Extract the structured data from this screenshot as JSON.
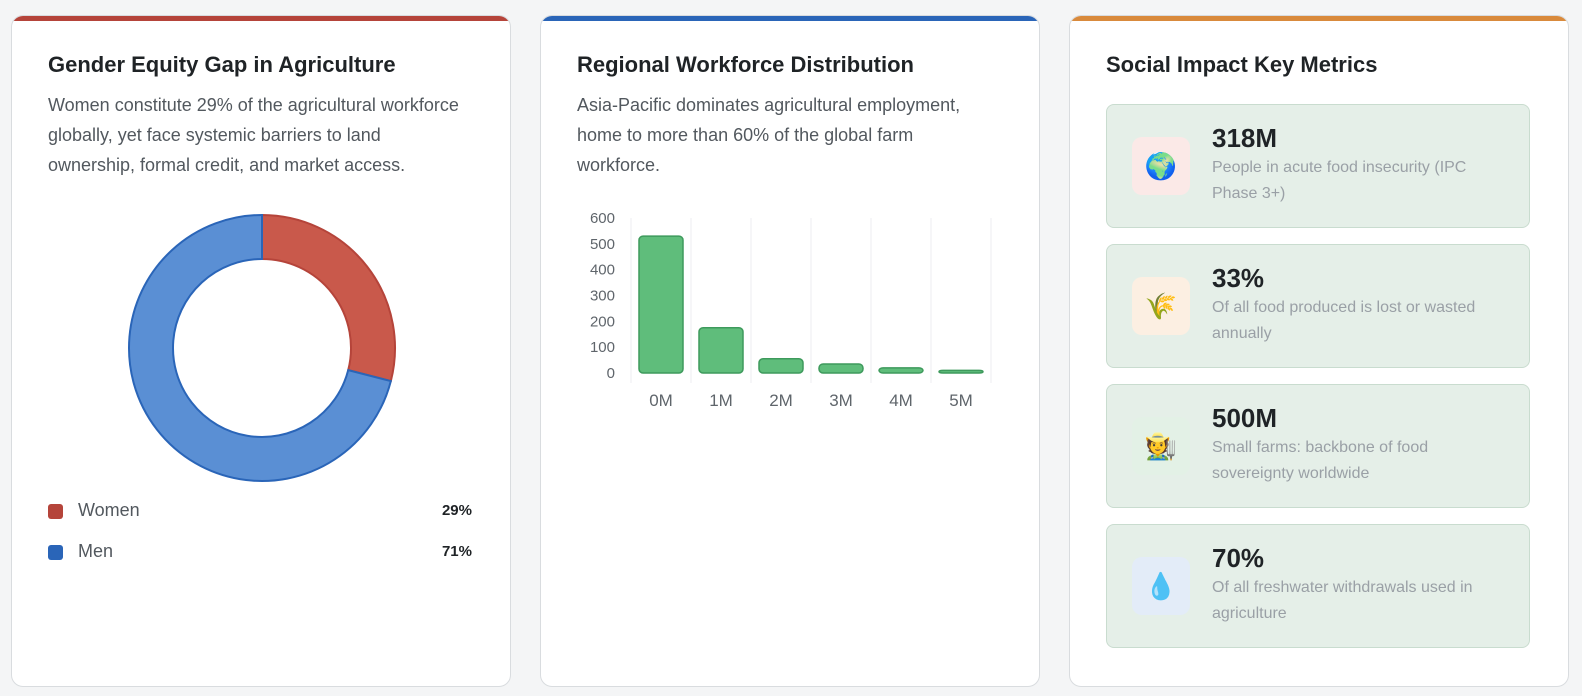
{
  "gender": {
    "title": "Gender Equity Gap in Agriculture",
    "description": "Women constitute 29% of the agricultural workforce globally, yet face systemic barriers to land ownership, formal credit, and market access.",
    "accent": "#b5443a",
    "legend": [
      {
        "label": "Women",
        "value_label": "29%",
        "color": "#b5443a"
      },
      {
        "label": "Men",
        "value_label": "71%",
        "color": "#2a65b8"
      }
    ]
  },
  "regional": {
    "title": "Regional Workforce Distribution",
    "description": "Asia-Pacific dominates agricultural employment, home to more than 60% of the global farm workforce.",
    "accent": "#2a65b8"
  },
  "impact": {
    "title": "Social Impact Key Metrics",
    "accent": "#d98a3c",
    "metrics": [
      {
        "icon": "globe-icon",
        "glyph": "🌍",
        "icon_bg": "#fbe9e7",
        "value": "318M",
        "label": "People in acute food insecurity (IPC Phase 3+)"
      },
      {
        "icon": "wheat-icon",
        "glyph": "🌾",
        "icon_bg": "#fcefe2",
        "value": "33%",
        "label": "Of all food produced is lost or wasted annually"
      },
      {
        "icon": "farmer-icon",
        "glyph": "🧑‍🌾",
        "icon_bg": "#e3f1e6",
        "value": "500M",
        "label": "Small farms: backbone of food sovereignty worldwide"
      },
      {
        "icon": "water-drop-icon",
        "glyph": "💧",
        "icon_bg": "#e3ecf8",
        "value": "70%",
        "label": "Of all freshwater withdrawals used in agriculture"
      }
    ]
  },
  "chart_data": [
    {
      "type": "pie",
      "donut": true,
      "categories": [
        "Women",
        "Men"
      ],
      "values": [
        29,
        71
      ],
      "colors": [
        "#c9594b",
        "#5a8fd4"
      ],
      "stroke_colors": [
        "#b5443a",
        "#2a65b8"
      ]
    },
    {
      "type": "bar",
      "categories": [
        "0M",
        "1M",
        "2M",
        "3M",
        "4M",
        "5M"
      ],
      "values": [
        530,
        175,
        55,
        35,
        20,
        10
      ],
      "ylim": [
        0,
        600
      ],
      "yticks": [
        0,
        100,
        200,
        300,
        400,
        500,
        600
      ],
      "grid": true,
      "bar_color": "#5fbd7b",
      "bar_stroke": "#3e9a5c"
    }
  ]
}
